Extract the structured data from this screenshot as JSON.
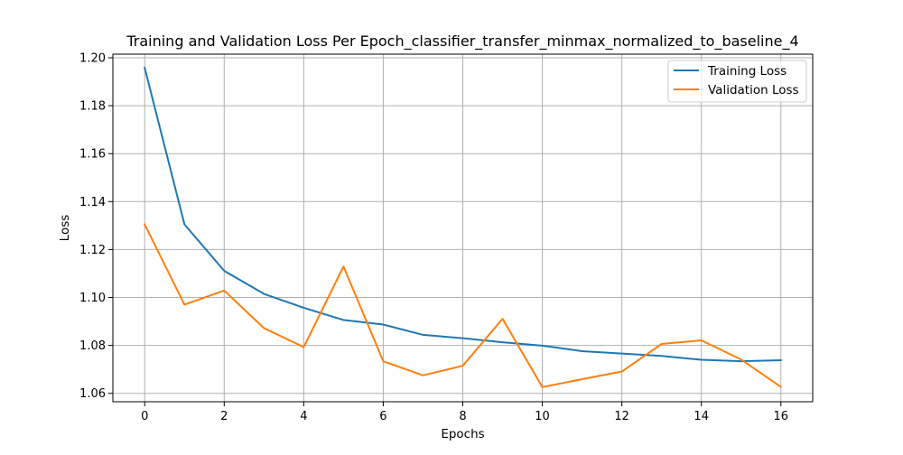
{
  "chart_data": {
    "type": "line",
    "title": "Training and Validation Loss Per Epoch_classifier_transfer_minmax_normalized_to_baseline_4",
    "xlabel": "Epochs",
    "ylabel": "Loss",
    "xlim": [
      -0.8,
      16.8
    ],
    "ylim": [
      1.0565,
      1.2015
    ],
    "xticks": [
      0,
      2,
      4,
      6,
      8,
      10,
      12,
      14,
      16
    ],
    "yticks": [
      1.06,
      1.08,
      1.1,
      1.12,
      1.14,
      1.16,
      1.18,
      1.2
    ],
    "xtick_labels": [
      "0",
      "2",
      "4",
      "6",
      "8",
      "10",
      "12",
      "14",
      "16"
    ],
    "ytick_labels": [
      "1.06",
      "1.08",
      "1.10",
      "1.12",
      "1.14",
      "1.16",
      "1.18",
      "1.20"
    ],
    "grid": true,
    "legend_position": "top-right",
    "x": [
      0,
      1,
      2,
      3,
      4,
      5,
      6,
      7,
      8,
      9,
      10,
      11,
      12,
      13,
      14,
      15,
      16
    ],
    "series": [
      {
        "name": "Training Loss",
        "color": "#1f77b4",
        "values": [
          1.1958,
          1.1305,
          1.1111,
          1.1015,
          1.0957,
          1.0906,
          1.0887,
          1.0844,
          1.083,
          1.0813,
          1.0799,
          1.0776,
          1.0766,
          1.0756,
          1.074,
          1.0734,
          1.0738
        ]
      },
      {
        "name": "Validation Loss",
        "color": "#ff7f0e",
        "values": [
          1.1305,
          1.097,
          1.1029,
          1.0872,
          1.0793,
          1.1129,
          1.0734,
          1.0675,
          1.0715,
          1.0911,
          1.0626,
          1.0659,
          1.0691,
          1.0806,
          1.0821,
          1.0741,
          1.0627
        ]
      }
    ]
  }
}
